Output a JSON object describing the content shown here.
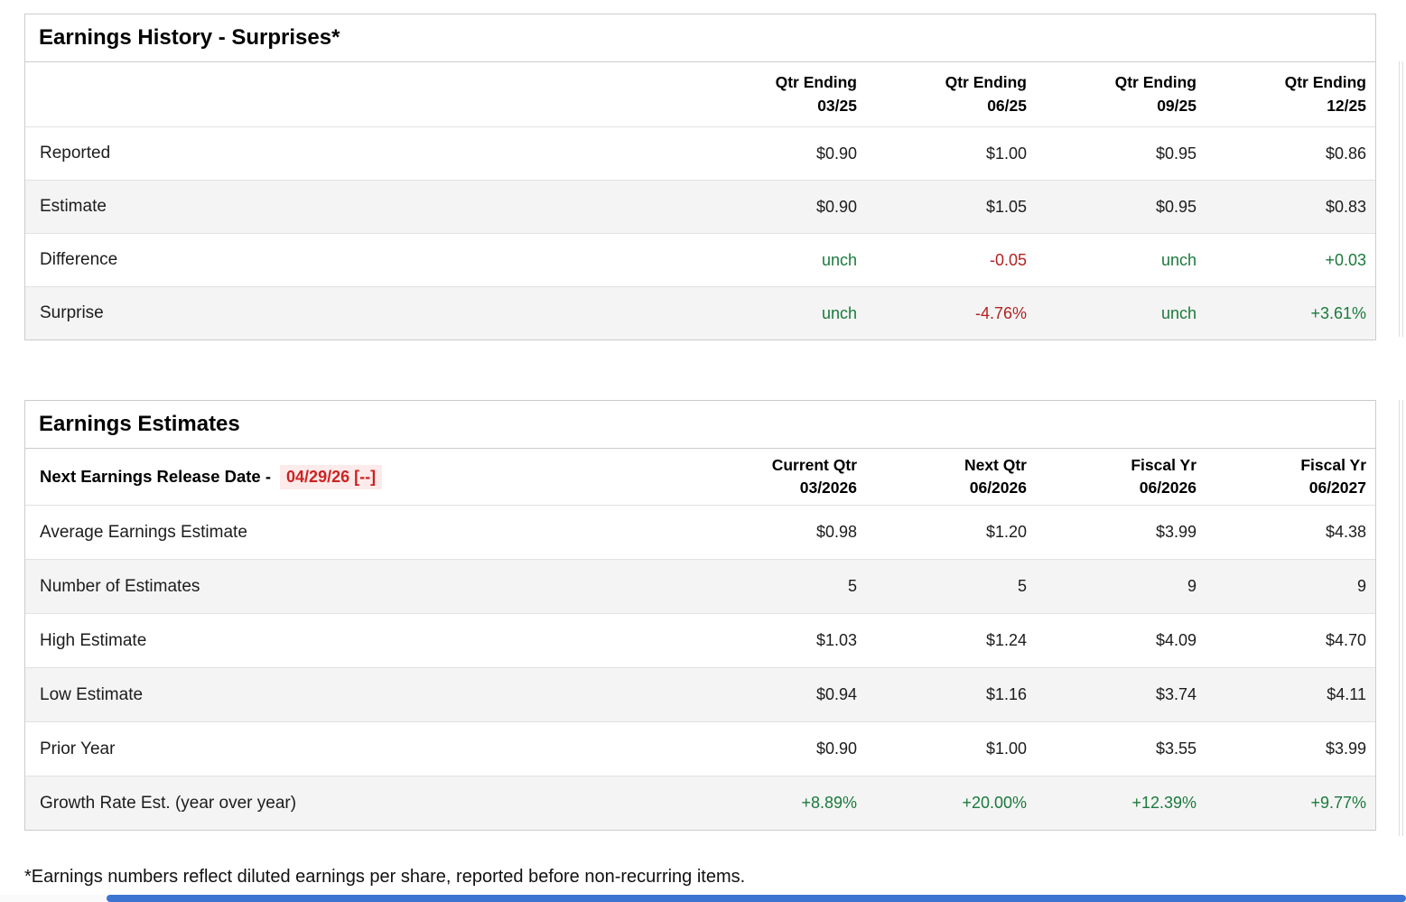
{
  "colors": {
    "positive": "#1a7a3c",
    "negative": "#b22222",
    "release_date_text": "#cc2222",
    "release_date_bg": "#fcebea",
    "border": "#cccccc",
    "row_border": "#e2e2e2",
    "row_alt_bg": "#f4f4f4",
    "heading": "#000000",
    "text": "#1c1c1c",
    "scrollbar_thumb": "#3c74d1"
  },
  "surprises_table": {
    "title": "Earnings History - Surprises*",
    "columns": [
      {
        "line1": "Qtr Ending",
        "line2": "03/25"
      },
      {
        "line1": "Qtr Ending",
        "line2": "06/25"
      },
      {
        "line1": "Qtr Ending",
        "line2": "09/25"
      },
      {
        "line1": "Qtr Ending",
        "line2": "12/25"
      }
    ],
    "rows": [
      {
        "label": "Reported",
        "values": [
          "$0.90",
          "$1.00",
          "$0.95",
          "$0.86"
        ]
      },
      {
        "label": "Estimate",
        "values": [
          "$0.90",
          "$1.05",
          "$0.95",
          "$0.83"
        ]
      },
      {
        "label": "Difference",
        "values": [
          "unch",
          "-0.05",
          "unch",
          "+0.03"
        ]
      },
      {
        "label": "Surprise",
        "values": [
          "unch",
          "-4.76%",
          "unch",
          "+3.61%"
        ]
      }
    ]
  },
  "estimates_table": {
    "title": "Earnings Estimates",
    "release_label": "Next Earnings Release Date -",
    "release_date": "04/29/26 [--]",
    "columns": [
      {
        "line1": "Current Qtr",
        "line2": "03/2026"
      },
      {
        "line1": "Next Qtr",
        "line2": "06/2026"
      },
      {
        "line1": "Fiscal Yr",
        "line2": "06/2026"
      },
      {
        "line1": "Fiscal Yr",
        "line2": "06/2027"
      }
    ],
    "rows": [
      {
        "label": "Average Earnings Estimate",
        "values": [
          "$0.98",
          "$1.20",
          "$3.99",
          "$4.38"
        ]
      },
      {
        "label": "Number of Estimates",
        "values": [
          "5",
          "5",
          "9",
          "9"
        ]
      },
      {
        "label": "High Estimate",
        "values": [
          "$1.03",
          "$1.24",
          "$4.09",
          "$4.70"
        ]
      },
      {
        "label": "Low Estimate",
        "values": [
          "$0.94",
          "$1.16",
          "$3.74",
          "$4.11"
        ]
      },
      {
        "label": "Prior Year",
        "values": [
          "$0.90",
          "$1.00",
          "$3.55",
          "$3.99"
        ]
      },
      {
        "label": "Growth Rate Est. (year over year)",
        "values": [
          "+8.89%",
          "+20.00%",
          "+12.39%",
          "+9.77%"
        ]
      }
    ]
  },
  "footnote": "*Earnings numbers reflect diluted earnings per share, reported before non-recurring items."
}
